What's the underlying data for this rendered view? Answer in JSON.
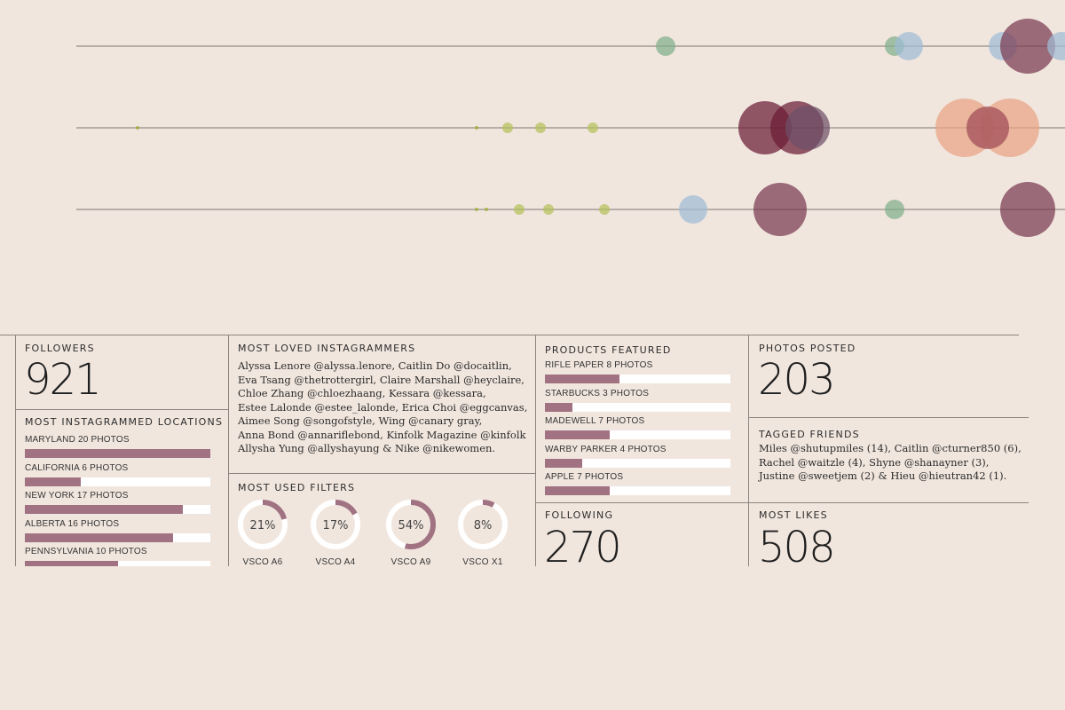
{
  "chart_data": {
    "type": "scatter",
    "rows": [
      {
        "points": [
          {
            "x": 750,
            "size": 11,
            "color": "#7fae8a"
          },
          {
            "x": 1008,
            "size": 11,
            "color": "#7fae8a"
          },
          {
            "x": 1024,
            "size": 16,
            "color": "#9fbcd6"
          },
          {
            "x": 1130,
            "size": 16,
            "color": "#9fbcd6"
          },
          {
            "x": 1158,
            "size": 31,
            "color": "#7a3a52"
          },
          {
            "x": 1196,
            "size": 16,
            "color": "#9fbcd6"
          }
        ]
      },
      {
        "points": [
          {
            "x": 155,
            "size": 2,
            "color": "#9aac2a"
          },
          {
            "x": 537,
            "size": 2,
            "color": "#9aac2a"
          },
          {
            "x": 572,
            "size": 6,
            "color": "#b4c05a"
          },
          {
            "x": 609,
            "size": 6,
            "color": "#b4c05a"
          },
          {
            "x": 668,
            "size": 6,
            "color": "#b4c05a"
          },
          {
            "x": 862,
            "size": 30,
            "color": "#6b1d36"
          },
          {
            "x": 898,
            "size": 30,
            "color": "#6b1d36"
          },
          {
            "x": 910,
            "size": 25,
            "color": "#6d5068"
          },
          {
            "x": 1087,
            "size": 33,
            "color": "#e9a384"
          },
          {
            "x": 1138,
            "size": 33,
            "color": "#e9a384"
          },
          {
            "x": 1113,
            "size": 24,
            "color": "#9e4a56"
          }
        ]
      },
      {
        "points": [
          {
            "x": 537,
            "size": 2,
            "color": "#9aac2a"
          },
          {
            "x": 548,
            "size": 2,
            "color": "#9aac2a"
          },
          {
            "x": 585,
            "size": 6,
            "color": "#b4c05a"
          },
          {
            "x": 618,
            "size": 6,
            "color": "#b4c05a"
          },
          {
            "x": 681,
            "size": 6,
            "color": "#b4c05a"
          },
          {
            "x": 781,
            "size": 16,
            "color": "#9fbcd6"
          },
          {
            "x": 879,
            "size": 30,
            "color": "#7a3a52"
          },
          {
            "x": 1008,
            "size": 11,
            "color": "#7fae8a"
          },
          {
            "x": 1158,
            "size": 31,
            "color": "#7a3a52"
          }
        ]
      }
    ]
  },
  "followers": {
    "label": "FOLLOWERS",
    "value": "921"
  },
  "locations": {
    "label": "MOST INSTAGRAMMED LOCATIONS",
    "items": [
      {
        "label": "MARYLAND 20 PHOTOS",
        "value": 20
      },
      {
        "label": "CALIFORNIA 6 PHOTOS",
        "value": 6
      },
      {
        "label": "NEW YORK 17 PHOTOS",
        "value": 17
      },
      {
        "label": "ALBERTA 16 PHOTOS",
        "value": 16
      },
      {
        "label": "PENNSYLVANIA 10 PHOTOS",
        "value": 10
      }
    ],
    "max": 20
  },
  "loved": {
    "label": "MOST LOVED INSTAGRAMMERS",
    "lines": [
      "Alyssa Lenore @alyssa.lenore, Caitlin Do @docaitlin,",
      "Eva Tsang @thetrottergirl, Claire Marshall @heyclaire,",
      "Chloe Zhang @chloezhaang, Kessara @kessara,",
      "Estee Lalonde @estee_lalonde, Erica Choi @eggcanvas,",
      "Aimee Song @songofstyle, Wing @canary gray,",
      "Anna Bond @annariflebond, Kinfolk Magazine @kinfolk",
      "Allysha Yung @allyshayung & Nike @nikewomen."
    ]
  },
  "filters": {
    "label": "MOST USED FILTERS",
    "items": [
      {
        "name": "VSCO A6",
        "pct": 21,
        "text": "21%"
      },
      {
        "name": "VSCO A4",
        "pct": 17,
        "text": "17%"
      },
      {
        "name": "VSCO A9",
        "pct": 54,
        "text": "54%"
      },
      {
        "name": "VSCO X1",
        "pct": 8,
        "text": "8%"
      }
    ]
  },
  "products": {
    "label": "PRODUCTS FEATURED",
    "items": [
      {
        "label": "RIFLE PAPER 8 PHOTOS",
        "value": 8
      },
      {
        "label": "STARBUCKS 3 PHOTOS",
        "value": 3
      },
      {
        "label": "MADEWELL 7 PHOTOS",
        "value": 7
      },
      {
        "label": "WARBY PARKER 4 PHOTOS",
        "value": 4
      },
      {
        "label": "APPLE 7 PHOTOS",
        "value": 7
      }
    ],
    "max": 20
  },
  "following": {
    "label": "FOLLOWING",
    "value": "270"
  },
  "photos": {
    "label": "PHOTOS POSTED",
    "value": "203"
  },
  "tagged": {
    "label": "TAGGED FRIENDS",
    "lines": [
      "Miles @shutupmiles (14), Caitlin @cturner850 (6),",
      "Rachel @waitzle (4), Shyne @shanayner (3),",
      "Justine @sweetjem (2) & Hieu @hieutran42 (1)."
    ]
  },
  "likes": {
    "label": "MOST LIKES",
    "value": "508"
  },
  "colors": {
    "bar": "#a07282",
    "track": "#ffffff",
    "background": "#f1e6de"
  }
}
